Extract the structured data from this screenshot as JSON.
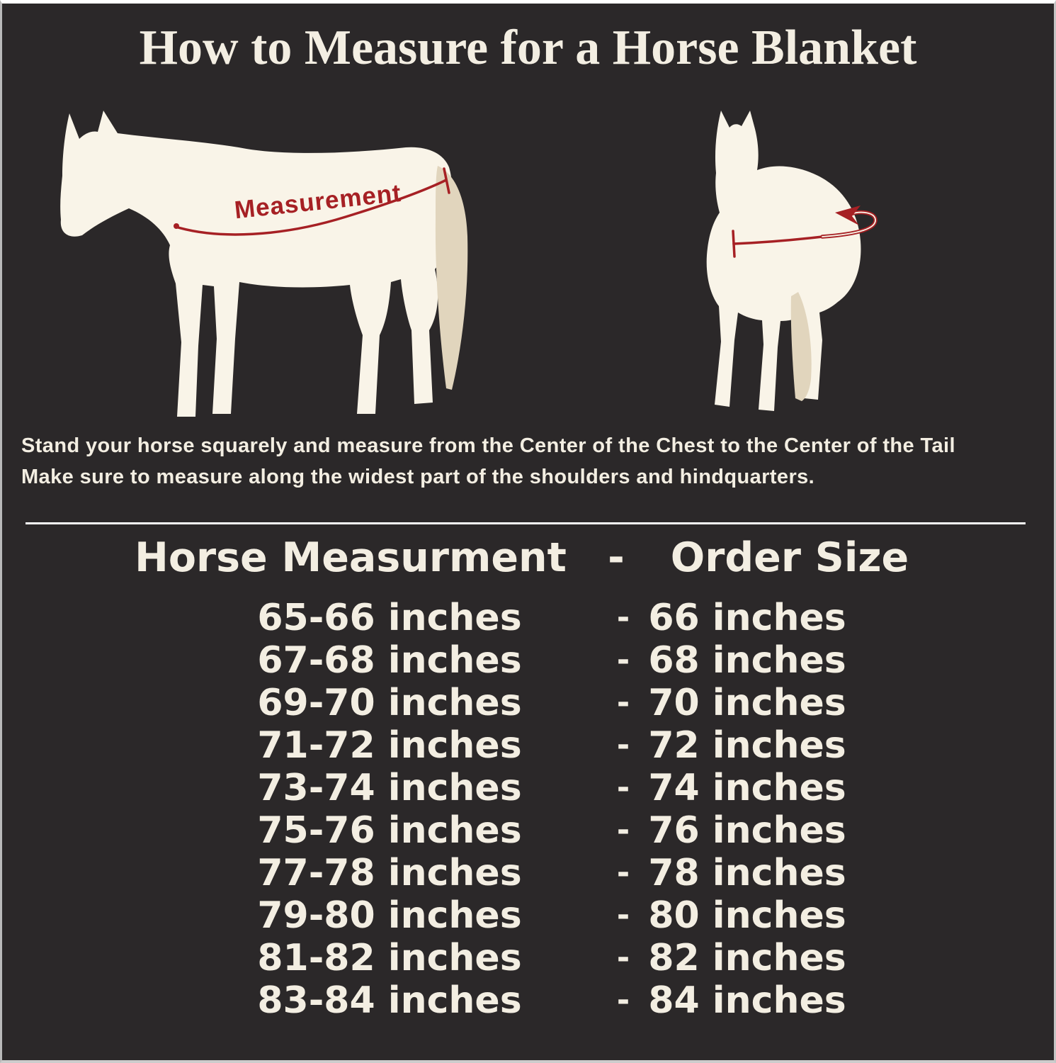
{
  "header": {
    "title": "How to Measure for a Horse Blanket"
  },
  "diagram": {
    "measurement_label": "Measurement",
    "instructions": {
      "line1": "Stand your horse squarely and measure from the Center of the Chest to the Center of the Tail",
      "line2": "Make sure to measure along the widest part of the shoulders and hindquarters."
    }
  },
  "size_chart": {
    "columns": {
      "measurement": "Horse Measurment",
      "separator": "-",
      "order_size": "Order Size"
    },
    "rows": [
      {
        "measurement": "65-66 inches",
        "separator": "-",
        "order_size": "66 inches"
      },
      {
        "measurement": "67-68 inches",
        "separator": "-",
        "order_size": "68 inches"
      },
      {
        "measurement": "69-70 inches",
        "separator": "-",
        "order_size": "70 inches"
      },
      {
        "measurement": "71-72 inches",
        "separator": "-",
        "order_size": "72 inches"
      },
      {
        "measurement": "73-74 inches",
        "separator": "-",
        "order_size": "74 inches"
      },
      {
        "measurement": "75-76 inches",
        "separator": "-",
        "order_size": "76 inches"
      },
      {
        "measurement": "77-78 inches",
        "separator": "-",
        "order_size": "78 inches"
      },
      {
        "measurement": "79-80 inches",
        "separator": "-",
        "order_size": "80 inches"
      },
      {
        "measurement": "81-82 inches",
        "separator": "-",
        "order_size": "82 inches"
      },
      {
        "measurement": "83-84 inches",
        "separator": "-",
        "order_size": "84 inches"
      }
    ]
  },
  "colors": {
    "background": "#2b2829",
    "text": "#f3eee2",
    "accent_red": "#a62024",
    "horse_body": "#f9f4e8",
    "horse_tan": "#e1d5bd",
    "divider": "#fbfbfb"
  }
}
